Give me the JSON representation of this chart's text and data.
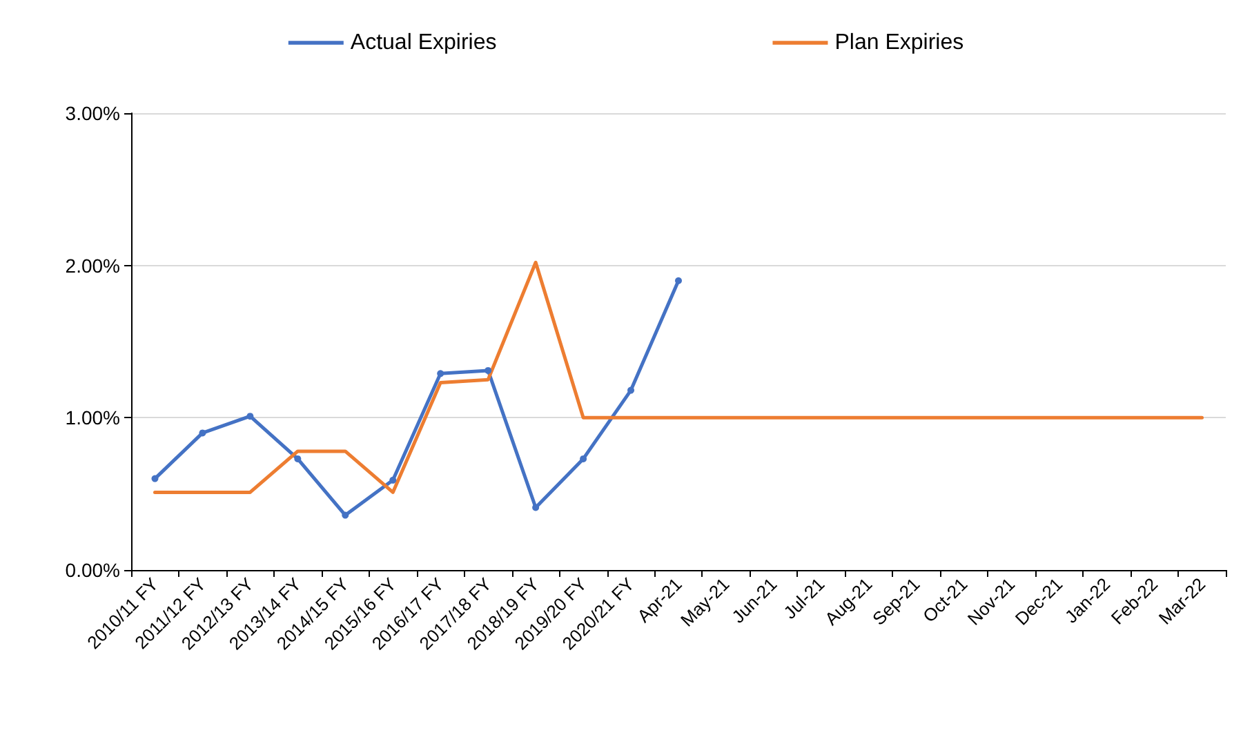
{
  "chart_data": {
    "type": "line",
    "categories": [
      "2010/11 FY",
      "2011/12 FY",
      "2012/13 FY",
      "2013/14 FY",
      "2014/15 FY",
      "2015/16 FY",
      "2016/17 FY",
      "2017/18 FY",
      "2018/19 FY",
      "2019/20 FY",
      "2020/21 FY",
      "Apr-21",
      "May-21",
      "Jun-21",
      "Jul-21",
      "Aug-21",
      "Sep-21",
      "Oct-21",
      "Nov-21",
      "Dec-21",
      "Jan-22",
      "Feb-22",
      "Mar-22"
    ],
    "series": [
      {
        "name": "Actual Expiries",
        "color": "#4472c4",
        "marker": "circle",
        "values": [
          0.6,
          0.9,
          1.01,
          0.73,
          0.36,
          0.59,
          1.29,
          1.31,
          0.41,
          0.73,
          1.18,
          1.9,
          null,
          null,
          null,
          null,
          null,
          null,
          null,
          null,
          null,
          null,
          null
        ]
      },
      {
        "name": "Plan Expiries",
        "color": "#ed7d31",
        "marker": "none",
        "values": [
          0.51,
          0.51,
          0.51,
          0.78,
          0.78,
          0.51,
          1.23,
          1.25,
          2.02,
          1.0,
          1.0,
          1.0,
          1.0,
          1.0,
          1.0,
          1.0,
          1.0,
          1.0,
          1.0,
          1.0,
          1.0,
          1.0,
          1.0
        ]
      }
    ],
    "ylim": [
      0,
      3
    ],
    "yticks": [
      {
        "value": 0,
        "label": "0.00%"
      },
      {
        "value": 1,
        "label": "1.00%"
      },
      {
        "value": 2,
        "label": "2.00%"
      },
      {
        "value": 3,
        "label": "3.00%"
      }
    ],
    "grid": "y",
    "legend": "top",
    "line_style": "solid"
  }
}
